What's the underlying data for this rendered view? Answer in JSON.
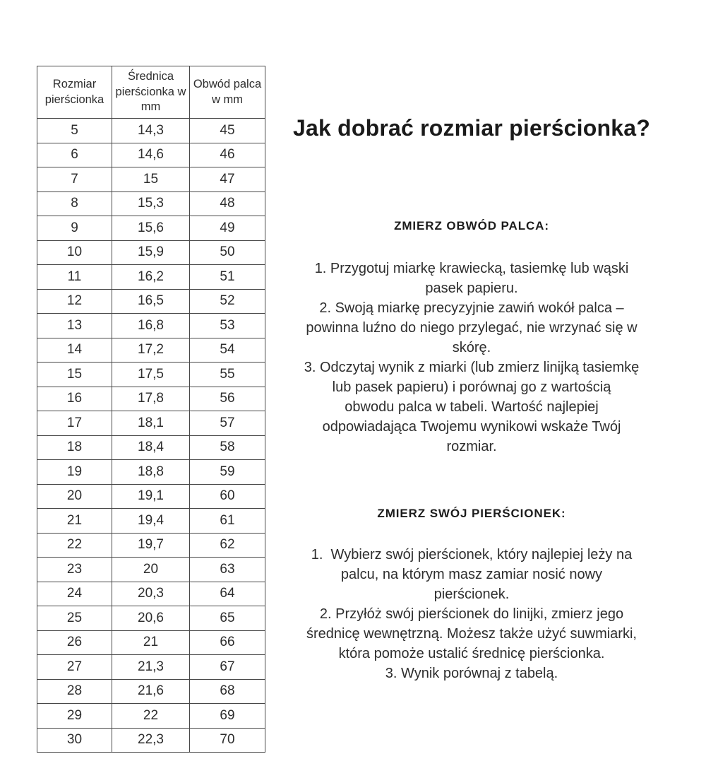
{
  "colors": {
    "background": "#ffffff",
    "text": "#2e2e2e",
    "heading": "#1a1a1a",
    "table_border": "#474747"
  },
  "table": {
    "headers": [
      "Rozmiar pierścionka",
      "Średnica pierścionka w mm",
      "Obwód palca w mm"
    ],
    "rows": [
      [
        "5",
        "14,3",
        "45"
      ],
      [
        "6",
        "14,6",
        "46"
      ],
      [
        "7",
        "15",
        "47"
      ],
      [
        "8",
        "15,3",
        "48"
      ],
      [
        "9",
        "15,6",
        "49"
      ],
      [
        "10",
        "15,9",
        "50"
      ],
      [
        "11",
        "16,2",
        "51"
      ],
      [
        "12",
        "16,5",
        "52"
      ],
      [
        "13",
        "16,8",
        "53"
      ],
      [
        "14",
        "17,2",
        "54"
      ],
      [
        "15",
        "17,5",
        "55"
      ],
      [
        "16",
        "17,8",
        "56"
      ],
      [
        "17",
        "18,1",
        "57"
      ],
      [
        "18",
        "18,4",
        "58"
      ],
      [
        "19",
        "18,8",
        "59"
      ],
      [
        "20",
        "19,1",
        "60"
      ],
      [
        "21",
        "19,4",
        "61"
      ],
      [
        "22",
        "19,7",
        "62"
      ],
      [
        "23",
        "20",
        "63"
      ],
      [
        "24",
        "20,3",
        "64"
      ],
      [
        "25",
        "20,6",
        "65"
      ],
      [
        "26",
        "21",
        "66"
      ],
      [
        "27",
        "21,3",
        "67"
      ],
      [
        "28",
        "21,6",
        "68"
      ],
      [
        "29",
        "22",
        "69"
      ],
      [
        "30",
        "22,3",
        "70"
      ]
    ]
  },
  "guide": {
    "title": "Jak dobrać rozmiar pierścionka?",
    "sections": [
      {
        "heading": "ZMIERZ OBWÓD PALCA:",
        "lines": [
          "1. Przygotuj miarkę krawiecką, tasiemkę lub wąski",
          "pasek papieru.",
          "2. Swoją miarkę precyzyjnie zawiń wokół palca –",
          "powinna luźno do niego przylegać, nie wrzynać się w",
          "skórę.",
          "3. Odczytaj wynik z miarki (lub zmierz linijką tasiemkę",
          "lub pasek papieru) i porównaj go z wartością",
          "obwodu palca w tabeli. Wartość najlepiej",
          "odpowiadająca Twojemu wynikowi wskaże Twój",
          "rozmiar."
        ]
      },
      {
        "heading": "ZMIERZ SWÓJ PIERŚCIONEK:",
        "lines": [
          "1.  Wybierz swój pierścionek, który najlepiej leży na",
          "palcu, na którym masz zamiar nosić nowy",
          "pierścionek.",
          "2. Przyłóż swój pierścionek do linijki, zmierz jego",
          "średnicę wewnętrzną. Możesz także użyć suwmiarki,",
          "która pomoże ustalić średnicę pierścionka.",
          "3. Wynik porównaj z tabelą."
        ]
      }
    ]
  }
}
